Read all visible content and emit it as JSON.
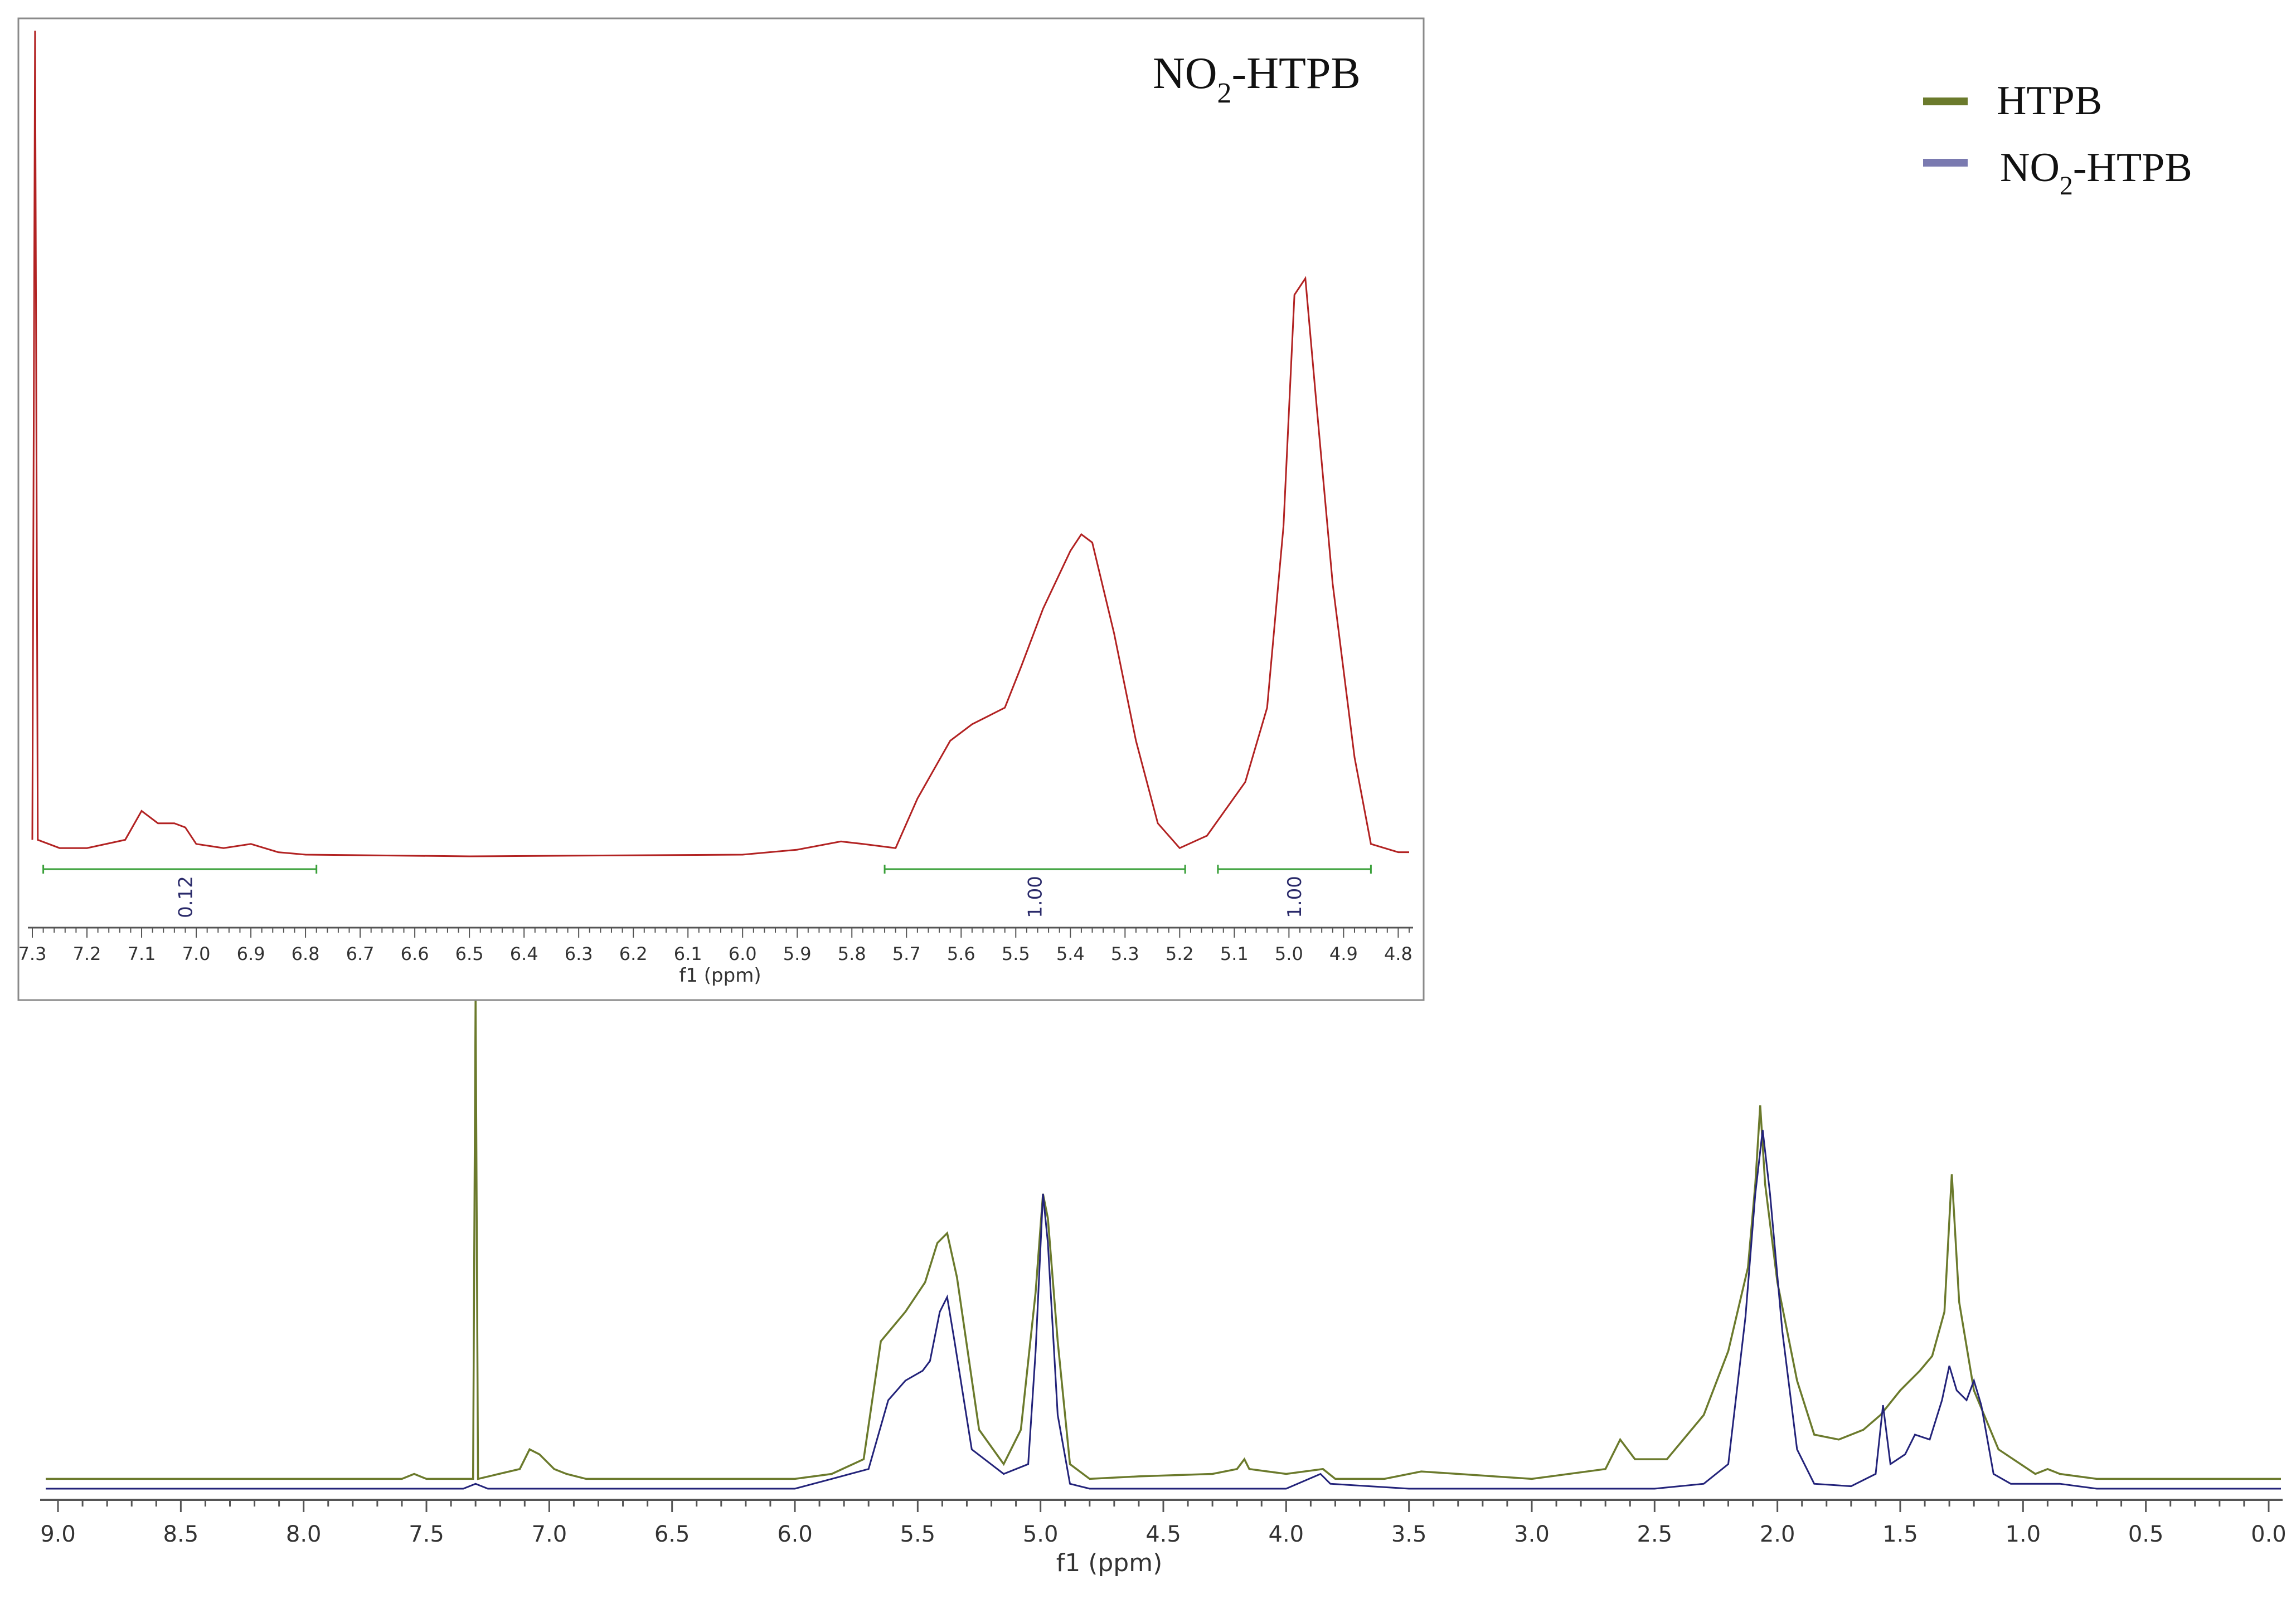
{
  "colors": {
    "htpb": "#6b7a2c",
    "no2_htpb": "#23237a",
    "inset_trace": "#b22222",
    "integral": "#3aa03a",
    "integral_label": "#2a2a6a",
    "axis": "#555555"
  },
  "legend": {
    "items": [
      {
        "label": "HTPB",
        "color": "#6b7a2c"
      },
      {
        "label_main": "NO",
        "label_sub": "2",
        "label_rest": "-HTPB",
        "color": "#7a7ab0"
      }
    ]
  },
  "main": {
    "xlabel": "f1 (ppm)",
    "ticks": [
      "9.0",
      "8.5",
      "8.0",
      "7.5",
      "7.0",
      "6.5",
      "6.0",
      "5.5",
      "5.0",
      "4.5",
      "4.0",
      "3.5",
      "3.0",
      "2.5",
      "2.0",
      "1.5",
      "1.0",
      "0.5",
      "0.0"
    ]
  },
  "inset": {
    "title_main": "NO",
    "title_sub": "2",
    "title_rest": "-HTPB",
    "xlabel": "f1 (ppm)",
    "ticks": [
      "7.3",
      "7.2",
      "7.1",
      "7.0",
      "6.9",
      "6.8",
      "6.7",
      "6.6",
      "6.5",
      "6.4",
      "6.3",
      "6.2",
      "6.1",
      "6.0",
      "5.9",
      "5.8",
      "5.7",
      "5.6",
      "5.5",
      "5.4",
      "5.3",
      "5.2",
      "5.1",
      "5.0",
      "4.9",
      "4.8"
    ],
    "integrals": [
      {
        "from": 7.28,
        "to": 6.78,
        "label": "0.12"
      },
      {
        "from": 5.74,
        "to": 5.19,
        "label": "1.00"
      },
      {
        "from": 5.13,
        "to": 4.85,
        "label": "1.00"
      }
    ]
  },
  "chart_data": [
    {
      "type": "line",
      "xlabel": "f1 (ppm)",
      "xlim": [
        9.05,
        -0.05
      ],
      "x_reversed": true,
      "series": [
        {
          "name": "HTPB",
          "points": [
            [
              9.05,
              0.02
            ],
            [
              7.6,
              0.02
            ],
            [
              7.55,
              0.03
            ],
            [
              7.5,
              0.02
            ],
            [
              7.31,
              0.02
            ],
            [
              7.3,
              1.0
            ],
            [
              7.29,
              0.02
            ],
            [
              7.12,
              0.04
            ],
            [
              7.08,
              0.08
            ],
            [
              7.04,
              0.07
            ],
            [
              6.98,
              0.04
            ],
            [
              6.93,
              0.03
            ],
            [
              6.85,
              0.02
            ],
            [
              6.0,
              0.02
            ],
            [
              5.85,
              0.03
            ],
            [
              5.72,
              0.06
            ],
            [
              5.65,
              0.3
            ],
            [
              5.55,
              0.36
            ],
            [
              5.47,
              0.42
            ],
            [
              5.42,
              0.5
            ],
            [
              5.38,
              0.52
            ],
            [
              5.34,
              0.43
            ],
            [
              5.25,
              0.12
            ],
            [
              5.15,
              0.05
            ],
            [
              5.08,
              0.12
            ],
            [
              5.02,
              0.4
            ],
            [
              4.99,
              0.6
            ],
            [
              4.97,
              0.55
            ],
            [
              4.93,
              0.3
            ],
            [
              4.88,
              0.05
            ],
            [
              4.8,
              0.02
            ],
            [
              4.6,
              0.025
            ],
            [
              4.3,
              0.03
            ],
            [
              4.2,
              0.04
            ],
            [
              4.17,
              0.06
            ],
            [
              4.15,
              0.04
            ],
            [
              4.0,
              0.03
            ],
            [
              3.85,
              0.04
            ],
            [
              3.8,
              0.02
            ],
            [
              3.6,
              0.02
            ],
            [
              3.45,
              0.035
            ],
            [
              3.3,
              0.03
            ],
            [
              3.0,
              0.02
            ],
            [
              2.7,
              0.04
            ],
            [
              2.64,
              0.1
            ],
            [
              2.58,
              0.06
            ],
            [
              2.45,
              0.06
            ],
            [
              2.3,
              0.15
            ],
            [
              2.2,
              0.28
            ],
            [
              2.12,
              0.45
            ],
            [
              2.09,
              0.62
            ],
            [
              2.07,
              0.78
            ],
            [
              2.05,
              0.62
            ],
            [
              2.0,
              0.42
            ],
            [
              1.92,
              0.22
            ],
            [
              1.85,
              0.11
            ],
            [
              1.75,
              0.1
            ],
            [
              1.65,
              0.12
            ],
            [
              1.58,
              0.15
            ],
            [
              1.5,
              0.2
            ],
            [
              1.42,
              0.24
            ],
            [
              1.37,
              0.27
            ],
            [
              1.32,
              0.36
            ],
            [
              1.29,
              0.64
            ],
            [
              1.26,
              0.38
            ],
            [
              1.2,
              0.2
            ],
            [
              1.1,
              0.08
            ],
            [
              0.95,
              0.03
            ],
            [
              0.9,
              0.04
            ],
            [
              0.85,
              0.03
            ],
            [
              0.7,
              0.02
            ],
            [
              0.3,
              0.02
            ],
            [
              -0.05,
              0.02
            ]
          ]
        },
        {
          "name": "NO2-HTPB",
          "points": [
            [
              9.05,
              0.0
            ],
            [
              7.35,
              0.0
            ],
            [
              7.3,
              0.01
            ],
            [
              7.25,
              0.0
            ],
            [
              6.0,
              0.0
            ],
            [
              5.85,
              0.02
            ],
            [
              5.7,
              0.04
            ],
            [
              5.62,
              0.18
            ],
            [
              5.55,
              0.22
            ],
            [
              5.48,
              0.24
            ],
            [
              5.45,
              0.26
            ],
            [
              5.41,
              0.36
            ],
            [
              5.38,
              0.39
            ],
            [
              5.35,
              0.3
            ],
            [
              5.28,
              0.08
            ],
            [
              5.15,
              0.03
            ],
            [
              5.05,
              0.05
            ],
            [
              5.02,
              0.28
            ],
            [
              4.99,
              0.6
            ],
            [
              4.97,
              0.5
            ],
            [
              4.93,
              0.15
            ],
            [
              4.88,
              0.01
            ],
            [
              4.8,
              0.0
            ],
            [
              4.0,
              0.0
            ],
            [
              3.86,
              0.03
            ],
            [
              3.82,
              0.01
            ],
            [
              3.5,
              0.0
            ],
            [
              2.5,
              0.0
            ],
            [
              2.3,
              0.01
            ],
            [
              2.2,
              0.05
            ],
            [
              2.13,
              0.35
            ],
            [
              2.09,
              0.6
            ],
            [
              2.06,
              0.73
            ],
            [
              2.03,
              0.6
            ],
            [
              1.98,
              0.32
            ],
            [
              1.92,
              0.08
            ],
            [
              1.85,
              0.01
            ],
            [
              1.7,
              0.005
            ],
            [
              1.6,
              0.03
            ],
            [
              1.57,
              0.17
            ],
            [
              1.54,
              0.05
            ],
            [
              1.48,
              0.07
            ],
            [
              1.44,
              0.11
            ],
            [
              1.38,
              0.1
            ],
            [
              1.33,
              0.18
            ],
            [
              1.3,
              0.25
            ],
            [
              1.27,
              0.2
            ],
            [
              1.23,
              0.18
            ],
            [
              1.2,
              0.22
            ],
            [
              1.17,
              0.17
            ],
            [
              1.12,
              0.03
            ],
            [
              1.05,
              0.01
            ],
            [
              0.9,
              0.01
            ],
            [
              0.85,
              0.01
            ],
            [
              0.7,
              0.0
            ],
            [
              -0.05,
              0.0
            ]
          ]
        }
      ]
    },
    {
      "type": "line",
      "title": "NO2-HTPB",
      "xlabel": "f1 (ppm)",
      "xlim": [
        7.3,
        4.78
      ],
      "x_reversed": true,
      "series": [
        {
          "name": "NO2-HTPB",
          "points": [
            [
              7.3,
              0.02
            ],
            [
              7.295,
              1.0
            ],
            [
              7.29,
              0.02
            ],
            [
              7.25,
              0.01
            ],
            [
              7.2,
              0.01
            ],
            [
              7.13,
              0.02
            ],
            [
              7.1,
              0.055
            ],
            [
              7.07,
              0.04
            ],
            [
              7.04,
              0.04
            ],
            [
              7.02,
              0.035
            ],
            [
              7.0,
              0.015
            ],
            [
              6.95,
              0.01
            ],
            [
              6.9,
              0.015
            ],
            [
              6.85,
              0.005
            ],
            [
              6.8,
              0.002
            ],
            [
              6.5,
              0.0
            ],
            [
              6.0,
              0.002
            ],
            [
              5.9,
              0.008
            ],
            [
              5.82,
              0.018
            ],
            [
              5.78,
              0.015
            ],
            [
              5.72,
              0.01
            ],
            [
              5.68,
              0.07
            ],
            [
              5.62,
              0.14
            ],
            [
              5.58,
              0.16
            ],
            [
              5.55,
              0.17
            ],
            [
              5.52,
              0.18
            ],
            [
              5.49,
              0.23
            ],
            [
              5.45,
              0.3
            ],
            [
              5.4,
              0.37
            ],
            [
              5.38,
              0.39
            ],
            [
              5.36,
              0.38
            ],
            [
              5.32,
              0.27
            ],
            [
              5.28,
              0.14
            ],
            [
              5.24,
              0.04
            ],
            [
              5.2,
              0.01
            ],
            [
              5.15,
              0.025
            ],
            [
              5.08,
              0.09
            ],
            [
              5.04,
              0.18
            ],
            [
              5.01,
              0.4
            ],
            [
              4.99,
              0.68
            ],
            [
              4.97,
              0.7
            ],
            [
              4.95,
              0.55
            ],
            [
              4.92,
              0.33
            ],
            [
              4.88,
              0.12
            ],
            [
              4.85,
              0.015
            ],
            [
              4.8,
              0.005
            ],
            [
              4.78,
              0.005
            ]
          ]
        }
      ]
    }
  ]
}
